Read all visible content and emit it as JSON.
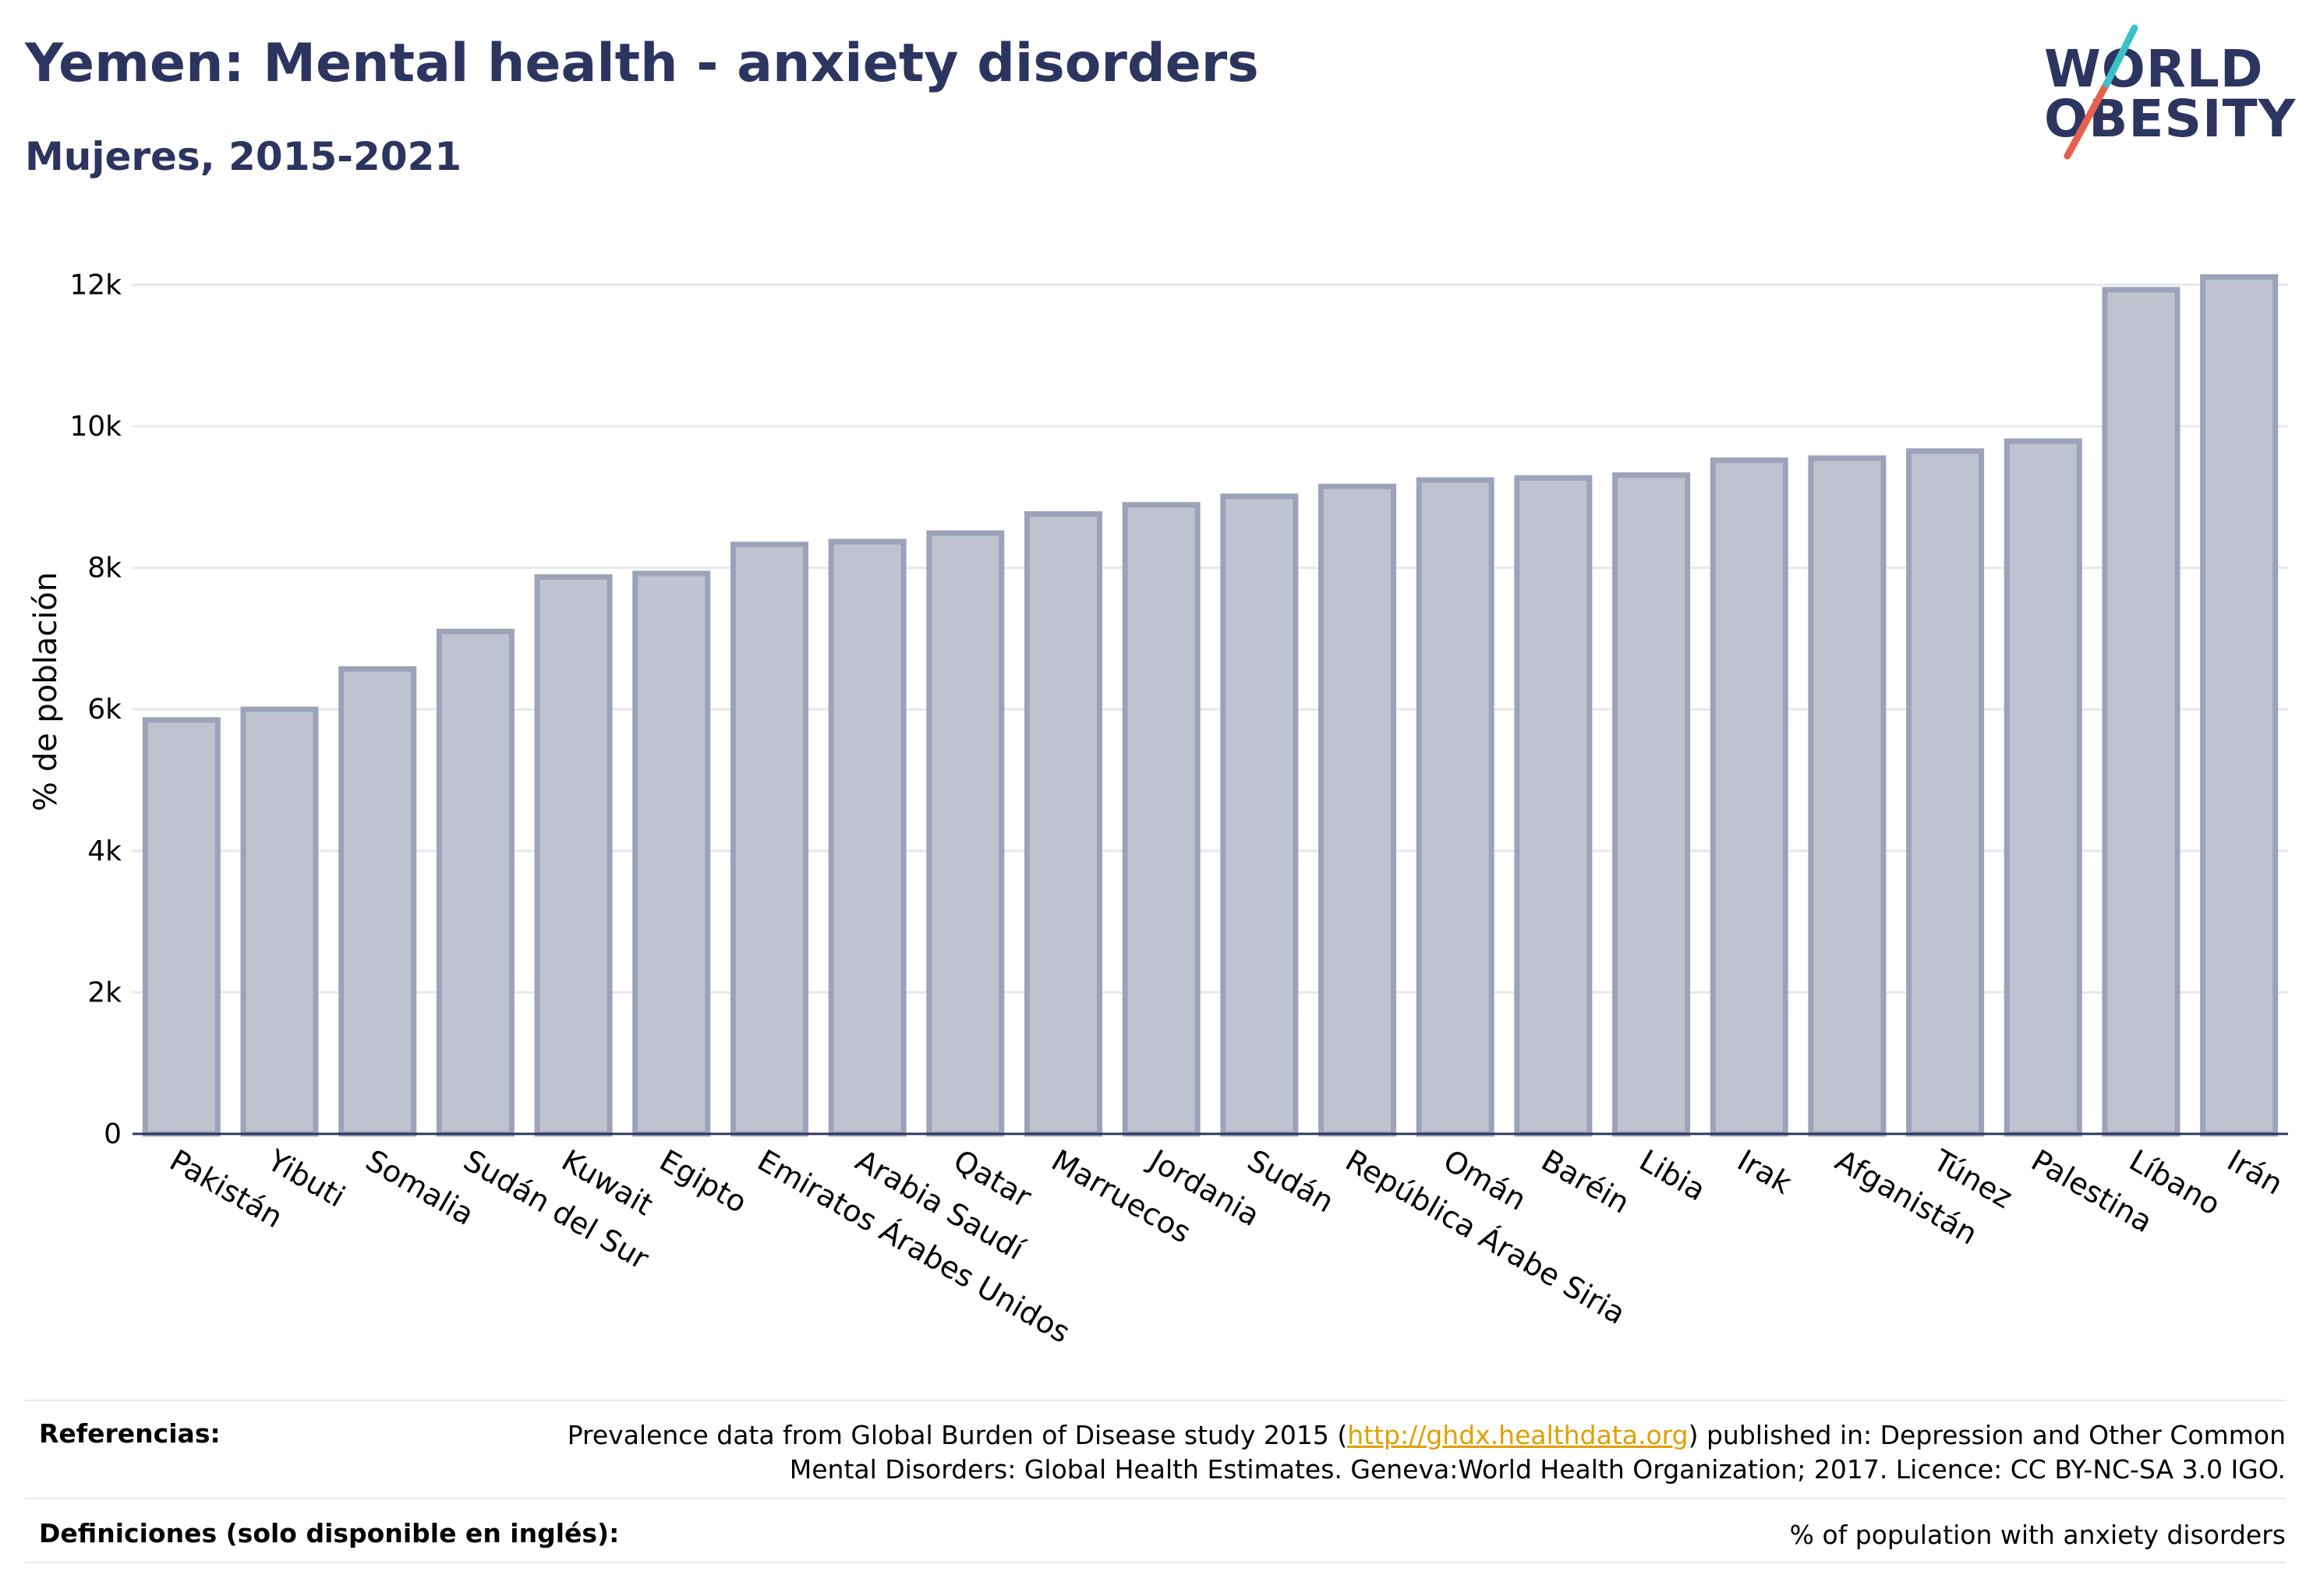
{
  "header": {
    "title": "Yemen: Mental health - anxiety disorders",
    "subtitle": "Mujeres, 2015-2021"
  },
  "logo": {
    "line1": "WORLD",
    "line2": "OBESITY",
    "accent_colors": [
      "#e7604f",
      "#3cc0c8"
    ]
  },
  "chart_data": {
    "type": "bar",
    "title": "Yemen: Mental health - anxiety disorders",
    "subtitle": "Mujeres, 2015-2021",
    "xlabel": "",
    "ylabel": "% de población",
    "ylim": [
      0,
      12500
    ],
    "yticks": [
      0,
      2000,
      4000,
      6000,
      8000,
      10000,
      12000
    ],
    "ytick_labels": [
      "0",
      "2k",
      "4k",
      "6k",
      "8k",
      "10k",
      "12k"
    ],
    "grid": true,
    "bar_color": "#bfc3d0",
    "bar_stroke": "#9ca2b8",
    "categories": [
      "Pakistán",
      "Yibuti",
      "Somalia",
      "Sudán del Sur",
      "Kuwait",
      "Egipto",
      "Emiratos Árabes Unidos",
      "Arabia Saudí",
      "Qatar",
      "Marruecos",
      "Jordania",
      "Sudán",
      "República Árabe Siria",
      "Omán",
      "Baréin",
      "Libia",
      "Irak",
      "Afganistán",
      "Túnez",
      "Palestina",
      "Líbano",
      "Irán"
    ],
    "values": [
      5850,
      6000,
      6570,
      7100,
      7870,
      7920,
      8330,
      8370,
      8490,
      8760,
      8890,
      9010,
      9150,
      9240,
      9270,
      9310,
      9520,
      9550,
      9650,
      9790,
      11930,
      12110
    ]
  },
  "references": {
    "label": "Referencias:",
    "text_before_link": "Prevalence data from Global Burden of Disease study 2015 (",
    "link": "http://ghdx.healthdata.org",
    "text_after_link": ") published in: Depression and Other Common",
    "line2": "Mental Disorders: Global Health Estimates. Geneva:World Health Organization; 2017. Licence: CC BY-NC-SA 3.0 IGO."
  },
  "definitions": {
    "label": "Definiciones (solo disponible en inglés):",
    "text": "% of population with anxiety disorders"
  }
}
